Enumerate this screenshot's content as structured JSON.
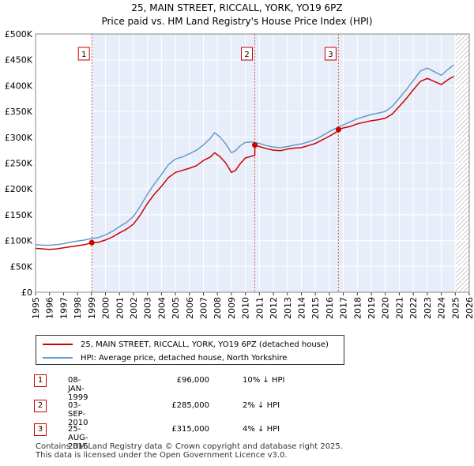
{
  "chart_data": {
    "type": "line",
    "title": "25, MAIN STREET, RICCALL, YORK, YO19 6PZ",
    "subtitle": "Price paid vs. HM Land Registry's House Price Index (HPI)",
    "xlabel": "",
    "ylabel": "",
    "xlim": [
      1995,
      2026
    ],
    "ylim": [
      0,
      500000
    ],
    "x_ticks": [
      "1995",
      "1996",
      "1997",
      "1998",
      "1999",
      "2000",
      "2001",
      "2002",
      "2003",
      "2004",
      "2005",
      "2006",
      "2007",
      "2008",
      "2009",
      "2010",
      "2011",
      "2012",
      "2013",
      "2014",
      "2015",
      "2016",
      "2017",
      "2018",
      "2019",
      "2020",
      "2021",
      "2022",
      "2023",
      "2024",
      "2025",
      "2026"
    ],
    "y_ticks": [
      {
        "value": 0,
        "label": "£0"
      },
      {
        "value": 50000,
        "label": "£50K"
      },
      {
        "value": 100000,
        "label": "£100K"
      },
      {
        "value": 150000,
        "label": "£150K"
      },
      {
        "value": 200000,
        "label": "£200K"
      },
      {
        "value": 250000,
        "label": "£250K"
      },
      {
        "value": 300000,
        "label": "£300K"
      },
      {
        "value": 350000,
        "label": "£350K"
      },
      {
        "value": 400000,
        "label": "£400K"
      },
      {
        "value": 450000,
        "label": "£450K"
      },
      {
        "value": 500000,
        "label": "£500K"
      }
    ],
    "ownership_shading": [
      1999.02,
      2025.0
    ],
    "future_hatch": [
      2025.0,
      2026.0
    ],
    "series": [
      {
        "name": "25, MAIN STREET, RICCALL, YORK, YO19 6PZ (detached house)",
        "color": "#cc0000",
        "points": [
          [
            1995.0,
            85000
          ],
          [
            1995.5,
            84000
          ],
          [
            1996.0,
            83000
          ],
          [
            1996.5,
            84000
          ],
          [
            1997.0,
            86000
          ],
          [
            1997.5,
            88000
          ],
          [
            1998.0,
            90000
          ],
          [
            1998.5,
            92000
          ],
          [
            1999.02,
            96000
          ],
          [
            1999.5,
            97000
          ],
          [
            2000.0,
            101000
          ],
          [
            2000.5,
            107000
          ],
          [
            2001.0,
            115000
          ],
          [
            2001.5,
            122000
          ],
          [
            2002.0,
            132000
          ],
          [
            2002.5,
            150000
          ],
          [
            2003.0,
            172000
          ],
          [
            2003.5,
            190000
          ],
          [
            2004.0,
            205000
          ],
          [
            2004.5,
            222000
          ],
          [
            2005.0,
            232000
          ],
          [
            2005.5,
            236000
          ],
          [
            2006.0,
            240000
          ],
          [
            2006.5,
            245000
          ],
          [
            2007.0,
            255000
          ],
          [
            2007.5,
            262000
          ],
          [
            2007.8,
            270000
          ],
          [
            2008.2,
            262000
          ],
          [
            2008.6,
            250000
          ],
          [
            2009.0,
            232000
          ],
          [
            2009.3,
            236000
          ],
          [
            2009.6,
            248000
          ],
          [
            2010.0,
            260000
          ],
          [
            2010.67,
            265000
          ],
          [
            2010.68,
            285000
          ],
          [
            2011.0,
            282000
          ],
          [
            2011.5,
            278000
          ],
          [
            2012.0,
            275000
          ],
          [
            2012.5,
            274000
          ],
          [
            2013.0,
            277000
          ],
          [
            2013.5,
            279000
          ],
          [
            2014.0,
            280000
          ],
          [
            2014.5,
            284000
          ],
          [
            2015.0,
            288000
          ],
          [
            2015.5,
            295000
          ],
          [
            2016.0,
            302000
          ],
          [
            2016.5,
            310000
          ],
          [
            2016.65,
            315000
          ],
          [
            2017.0,
            318000
          ],
          [
            2017.5,
            321000
          ],
          [
            2018.0,
            326000
          ],
          [
            2018.5,
            329000
          ],
          [
            2019.0,
            332000
          ],
          [
            2019.5,
            334000
          ],
          [
            2020.0,
            337000
          ],
          [
            2020.5,
            345000
          ],
          [
            2021.0,
            360000
          ],
          [
            2021.5,
            375000
          ],
          [
            2022.0,
            392000
          ],
          [
            2022.5,
            408000
          ],
          [
            2023.0,
            414000
          ],
          [
            2023.5,
            408000
          ],
          [
            2024.0,
            402000
          ],
          [
            2024.5,
            412000
          ],
          [
            2024.9,
            418000
          ]
        ]
      },
      {
        "name": "HPI: Average price, detached house, North Yorkshire",
        "color": "#6699cc",
        "points": [
          [
            1995.0,
            92000
          ],
          [
            1995.5,
            91000
          ],
          [
            1996.0,
            91000
          ],
          [
            1996.5,
            92000
          ],
          [
            1997.0,
            94000
          ],
          [
            1997.5,
            97000
          ],
          [
            1998.0,
            99000
          ],
          [
            1998.5,
            101000
          ],
          [
            1999.0,
            104000
          ],
          [
            1999.5,
            106000
          ],
          [
            2000.0,
            111000
          ],
          [
            2000.5,
            118000
          ],
          [
            2001.0,
            127000
          ],
          [
            2001.5,
            135000
          ],
          [
            2002.0,
            147000
          ],
          [
            2002.5,
            167000
          ],
          [
            2003.0,
            190000
          ],
          [
            2003.5,
            210000
          ],
          [
            2004.0,
            228000
          ],
          [
            2004.5,
            247000
          ],
          [
            2005.0,
            258000
          ],
          [
            2005.5,
            262000
          ],
          [
            2006.0,
            268000
          ],
          [
            2006.5,
            275000
          ],
          [
            2007.0,
            285000
          ],
          [
            2007.5,
            298000
          ],
          [
            2007.8,
            309000
          ],
          [
            2008.2,
            300000
          ],
          [
            2008.6,
            287000
          ],
          [
            2009.0,
            270000
          ],
          [
            2009.3,
            274000
          ],
          [
            2009.6,
            283000
          ],
          [
            2010.0,
            290000
          ],
          [
            2010.5,
            291000
          ],
          [
            2011.0,
            288000
          ],
          [
            2011.5,
            284000
          ],
          [
            2012.0,
            281000
          ],
          [
            2012.5,
            280000
          ],
          [
            2013.0,
            282000
          ],
          [
            2013.5,
            285000
          ],
          [
            2014.0,
            287000
          ],
          [
            2014.5,
            291000
          ],
          [
            2015.0,
            296000
          ],
          [
            2015.5,
            303000
          ],
          [
            2016.0,
            311000
          ],
          [
            2016.5,
            318000
          ],
          [
            2017.0,
            324000
          ],
          [
            2017.5,
            330000
          ],
          [
            2018.0,
            336000
          ],
          [
            2018.5,
            340000
          ],
          [
            2019.0,
            344000
          ],
          [
            2019.5,
            347000
          ],
          [
            2020.0,
            350000
          ],
          [
            2020.5,
            360000
          ],
          [
            2021.0,
            376000
          ],
          [
            2021.5,
            392000
          ],
          [
            2022.0,
            410000
          ],
          [
            2022.5,
            428000
          ],
          [
            2023.0,
            434000
          ],
          [
            2023.5,
            427000
          ],
          [
            2024.0,
            420000
          ],
          [
            2024.5,
            432000
          ],
          [
            2024.9,
            440000
          ]
        ]
      }
    ],
    "sales": [
      {
        "label": "1",
        "x": 1999.02,
        "value": 96000
      },
      {
        "label": "2",
        "x": 2010.67,
        "value": 285000
      },
      {
        "label": "3",
        "x": 2016.65,
        "value": 315000
      }
    ]
  },
  "legend": {
    "property": "25, MAIN STREET, RICCALL, YORK, YO19 6PZ (detached house)",
    "hpi": "HPI: Average price, detached house, North Yorkshire"
  },
  "transactions": [
    {
      "num": "1",
      "date": "08-JAN-1999",
      "price": "£96,000",
      "hpi": "10% ↓ HPI"
    },
    {
      "num": "2",
      "date": "03-SEP-2010",
      "price": "£285,000",
      "hpi": "2% ↓ HPI"
    },
    {
      "num": "3",
      "date": "25-AUG-2016",
      "price": "£315,000",
      "hpi": "4% ↓ HPI"
    }
  ],
  "footer": {
    "line1": "Contains HM Land Registry data © Crown copyright and database right 2025.",
    "line2": "This data is licensed under the Open Government Licence v3.0."
  }
}
